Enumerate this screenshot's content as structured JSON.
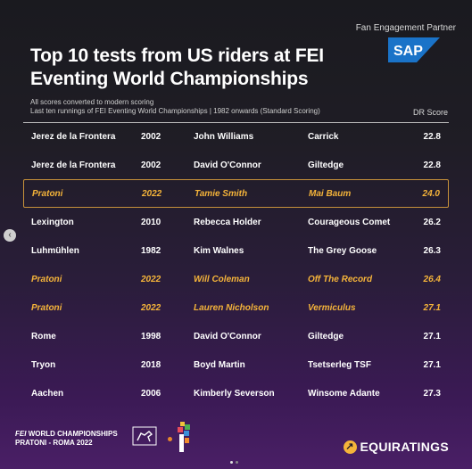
{
  "partner_label": "Fan Engagement Partner",
  "sap_logo": "SAP",
  "title": "Top 10 tests from US riders at FEI Eventing World Championships",
  "subtitle_lines": [
    "All scores converted to modern scoring",
    "Last ten runnings of FEI Eventing World Championships | 1982 onwards (Standard Scoring)"
  ],
  "score_header": "DR Score",
  "rows": [
    {
      "venue": "Jerez de la Frontera",
      "year": "2002",
      "rider": "John Williams",
      "horse": "Carrick",
      "score": "22.8"
    },
    {
      "venue": "Jerez de la Frontera",
      "year": "2002",
      "rider": "David O'Connor",
      "horse": "Giltedge",
      "score": "22.8"
    },
    {
      "venue": "Pratoni",
      "year": "2022",
      "rider": "Tamie Smith",
      "horse": "Mai Baum",
      "score": "24.0"
    },
    {
      "venue": "Lexington",
      "year": "2010",
      "rider": "Rebecca Holder",
      "horse": "Courageous Comet",
      "score": "26.2"
    },
    {
      "venue": "Luhmühlen",
      "year": "1982",
      "rider": "Kim Walnes",
      "horse": "The Grey Goose",
      "score": "26.3"
    },
    {
      "venue": "Pratoni",
      "year": "2022",
      "rider": "Will Coleman",
      "horse": "Off The Record",
      "score": "26.4"
    },
    {
      "venue": "Pratoni",
      "year": "2022",
      "rider": "Lauren Nicholson",
      "horse": "Vermiculus",
      "score": "27.1"
    },
    {
      "venue": "Rome",
      "year": "1998",
      "rider": "David O'Connor",
      "horse": "Giltedge",
      "score": "27.1"
    },
    {
      "venue": "Tryon",
      "year": "2018",
      "rider": "Boyd Martin",
      "horse": "Tsetserleg TSF",
      "score": "27.1"
    },
    {
      "venue": "Aachen",
      "year": "2006",
      "rider": "Kimberly Severson",
      "horse": "Winsome Adante",
      "score": "27.3"
    }
  ],
  "footer": {
    "fei": "FEI",
    "event_line1": "WORLD CHAMPIONSHIPS",
    "event_line2": "PRATONI - ROMA 2022",
    "brand": "EQUIRATINGS",
    "left_arrow": "‹"
  },
  "colors": {
    "highlight": "#f5b43a",
    "sap_blue": "#1a73c8"
  }
}
